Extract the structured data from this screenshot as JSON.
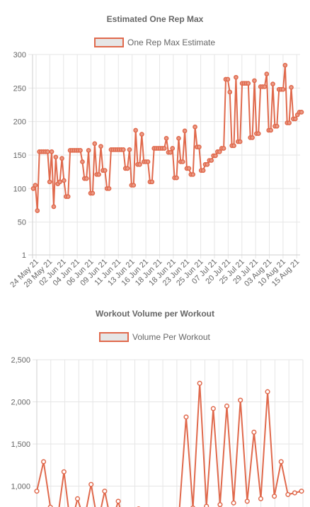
{
  "chart_data": [
    {
      "type": "line",
      "title": "Estimated One Rep Max",
      "series": [
        {
          "name": "One Rep Max Estimate",
          "color": "#e0694c",
          "values": [
            100,
            105,
            67,
            155,
            155,
            155,
            155,
            155,
            110,
            155,
            73,
            147,
            107,
            110,
            145,
            112,
            88,
            88,
            157,
            157,
            157,
            157,
            157,
            157,
            140,
            115,
            115,
            157,
            93,
            93,
            167,
            121,
            121,
            163,
            127,
            127,
            100,
            100,
            158,
            158,
            158,
            158,
            158,
            158,
            158,
            130,
            130,
            158,
            105,
            105,
            187,
            136,
            136,
            181,
            140,
            140,
            140,
            110,
            110,
            160,
            160,
            160,
            160,
            160,
            160,
            175,
            154,
            154,
            160,
            116,
            116,
            175,
            140,
            140,
            186,
            130,
            130,
            121,
            121,
            192,
            162,
            162,
            127,
            127,
            136,
            136,
            142,
            142,
            149,
            149,
            155,
            155,
            160,
            160,
            263,
            263,
            244,
            164,
            164,
            266,
            170,
            170,
            257,
            257,
            257,
            257,
            176,
            176,
            261,
            182,
            182,
            252,
            252,
            252,
            271,
            187,
            187,
            256,
            193,
            193,
            248,
            248,
            248,
            284,
            198,
            198,
            251,
            204,
            204,
            210,
            214,
            214
          ],
          "point_labels_visible": false
        }
      ],
      "x_tick_labels": [
        "24 May 21",
        "28 May 21",
        "02 Jun 21",
        "04 Jun 21",
        "06 Jun 21",
        "09 Jun 21",
        "11 Jun 21",
        "13 Jun 21",
        "16 Jun 21",
        "18 Jun 21",
        "18 Jun 21",
        "23 Jun 21",
        "25 Jun 21",
        "07 Jul 21",
        "20 Jul 21",
        "25 Jul 21",
        "29 Jul 21",
        "03 Aug 21",
        "10 Aug 21",
        "15 Aug 21"
      ],
      "y_ticks": [
        1,
        50,
        100,
        150,
        200,
        250,
        300
      ],
      "ylim": [
        1,
        300
      ],
      "legend_position": "top",
      "grid": true
    },
    {
      "type": "line",
      "title": "Workout Volume per Workout",
      "series": [
        {
          "name": "Volume Per Workout",
          "color": "#e0694c",
          "values": [
            940,
            1290,
            750,
            580,
            1170,
            520,
            850,
            600,
            1020,
            560,
            940,
            560,
            820,
            500,
            560,
            730,
            640,
            600,
            650,
            680,
            690,
            710,
            1820,
            740,
            2220,
            760,
            1920,
            780,
            1950,
            800,
            2020,
            820,
            1640,
            850,
            2120,
            880,
            1290,
            900,
            920,
            940
          ]
        }
      ],
      "y_ticks": [
        "1,000",
        "1,500",
        "2,000",
        "2,500"
      ],
      "y_tick_values": [
        1000,
        1500,
        2000,
        2500
      ],
      "ylim_visible_top": 2500,
      "legend_position": "top",
      "grid": true
    }
  ]
}
